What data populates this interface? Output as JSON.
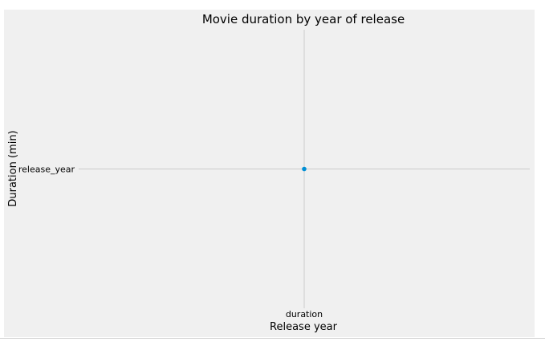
{
  "chart_data": {
    "type": "scatter",
    "title": "Movie duration by year of release",
    "xlabel": "Release year",
    "ylabel": "Duration (min)",
    "x_categories": [
      "duration"
    ],
    "y_categories": [
      "release_year"
    ],
    "points": [
      {
        "x": "duration",
        "y": "release_year"
      }
    ],
    "grid": true,
    "colors": {
      "background": "#f0f0f0",
      "grid": "#cbcbcb",
      "marker": "#008fd5"
    }
  }
}
